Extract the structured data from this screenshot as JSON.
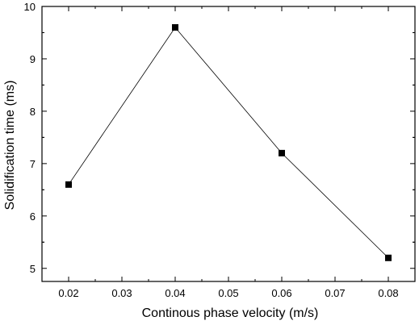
{
  "chart_data": {
    "type": "line",
    "title": "",
    "xlabel": "Continous phase velocity (m/s)",
    "ylabel": "Solidification time (ms)",
    "xlim": [
      0.015,
      0.085
    ],
    "ylim": [
      4.75,
      10
    ],
    "x_ticks": [
      "0.02",
      "0.03",
      "0.04",
      "0.05",
      "0.06",
      "0.07",
      "0.08"
    ],
    "y_ticks": [
      "5",
      "6",
      "7",
      "8",
      "9",
      "10"
    ],
    "grid": false,
    "legend": "none",
    "marker": "square",
    "color": "#000000",
    "series": [
      {
        "x": [
          0.02,
          0.04,
          0.06,
          0.08
        ],
        "values": [
          6.6,
          9.6,
          7.2,
          5.2
        ]
      }
    ]
  }
}
